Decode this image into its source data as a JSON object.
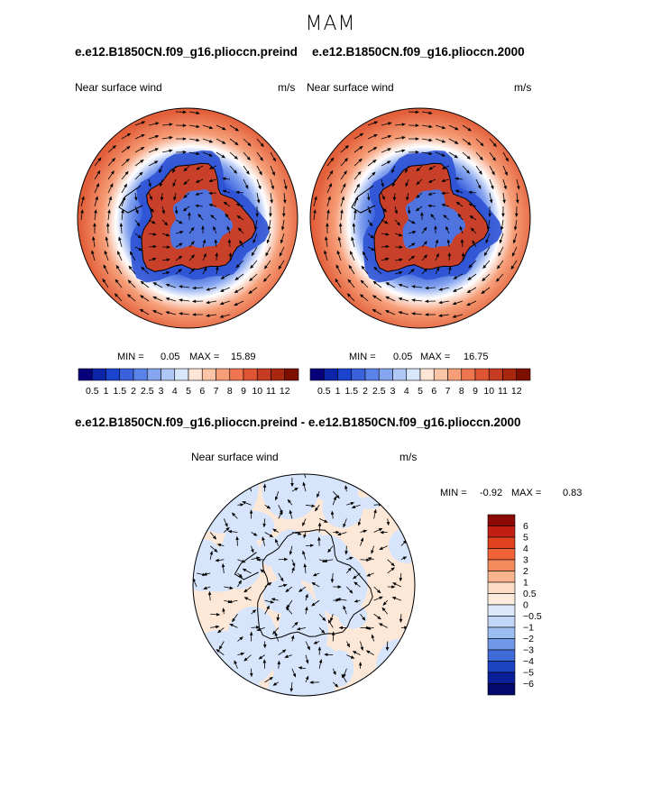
{
  "title": "MAM",
  "panels": [
    {
      "case_name": "e.e12.B1850CN.f09_g16.plioccn.preind",
      "field_label": "Near surface wind",
      "units": "m/s",
      "min_label": "MIN =",
      "min_value": "0.05",
      "max_label": "MAX =",
      "max_value": "15.89"
    },
    {
      "case_name": "e.e12.B1850CN.f09_g16.plioccn.2000",
      "field_label": "Near surface wind",
      "units": "m/s",
      "min_label": "MIN =",
      "min_value": "0.05",
      "max_label": "MAX =",
      "max_value": "16.75"
    }
  ],
  "wind_colorbar": {
    "labels": [
      "0.5",
      "1",
      "1.5",
      "2",
      "2.5",
      "3",
      "4",
      "5",
      "6",
      "7",
      "8",
      "9",
      "10",
      "11",
      "12"
    ],
    "colors": [
      "#08007a",
      "#0b24a8",
      "#1a44d0",
      "#3a62dd",
      "#5a82e8",
      "#86a5ef",
      "#b0c8f5",
      "#d7e6fb",
      "#fde6d6",
      "#fbc4a6",
      "#f69e78",
      "#ee7550",
      "#df5534",
      "#c63c22",
      "#a8270f",
      "#7d0f00"
    ]
  },
  "difference": {
    "case_name": "e.e12.B1850CN.f09_g16.plioccn.preind - e.e12.B1850CN.f09_g16.plioccn.2000",
    "field_label": "Near surface wind",
    "units": "m/s",
    "min_label": "MIN =",
    "min_value": "-0.92",
    "max_label": "MAX =",
    "max_value": "0.83"
  },
  "diff_colorbar": {
    "labels": [
      "6",
      "5",
      "4",
      "3",
      "2",
      "1",
      "0.5",
      "0",
      "−0.5",
      "−1",
      "−2",
      "−3",
      "−4",
      "−5",
      "−6"
    ],
    "colors": [
      "#8b0a06",
      "#c11f14",
      "#e0421f",
      "#f06238",
      "#f58a5a",
      "#f9b48e",
      "#fcdcc4",
      "#fdebdc",
      "#dde9fb",
      "#c2d6f6",
      "#9cbdf1",
      "#6f98e8",
      "#3f6bd8",
      "#1c43c2",
      "#0a1f9a",
      "#040a6b"
    ]
  }
}
